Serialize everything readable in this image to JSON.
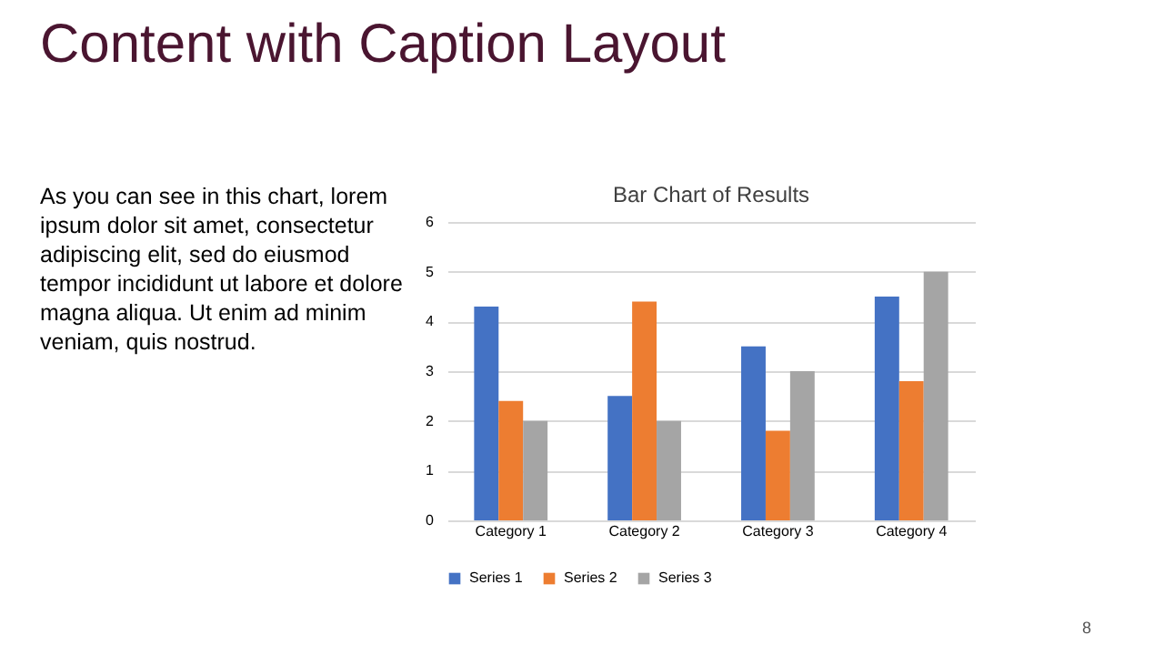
{
  "chart_data": {
    "type": "bar",
    "title": "Bar Chart of Results",
    "annotations": [
      "Content with Caption Layout",
      "As you can see in this chart, lorem ipsum dolor sit amet, consectetur adipiscing elit, sed do eiusmod tempor incididunt ut labore et dolore magna aliqua. Ut enim ad minim veniam, quis nostrud.",
      "8"
    ],
    "categories": [
      "Category 1",
      "Category 2",
      "Category 3",
      "Category 4"
    ],
    "series": [
      {
        "name": "Series 1",
        "color": "#4472c4",
        "values": [
          4.3,
          2.5,
          3.5,
          4.5
        ]
      },
      {
        "name": "Series 2",
        "color": "#ed7d31",
        "values": [
          2.4,
          4.4,
          1.8,
          2.8
        ]
      },
      {
        "name": "Series 3",
        "color": "#a5a5a5",
        "values": [
          2,
          2,
          3,
          5
        ]
      }
    ],
    "ylim": [
      0,
      6
    ],
    "yticks": [
      0,
      1,
      2,
      3,
      4,
      5,
      6
    ],
    "grid": "y",
    "legend": "bottom"
  }
}
